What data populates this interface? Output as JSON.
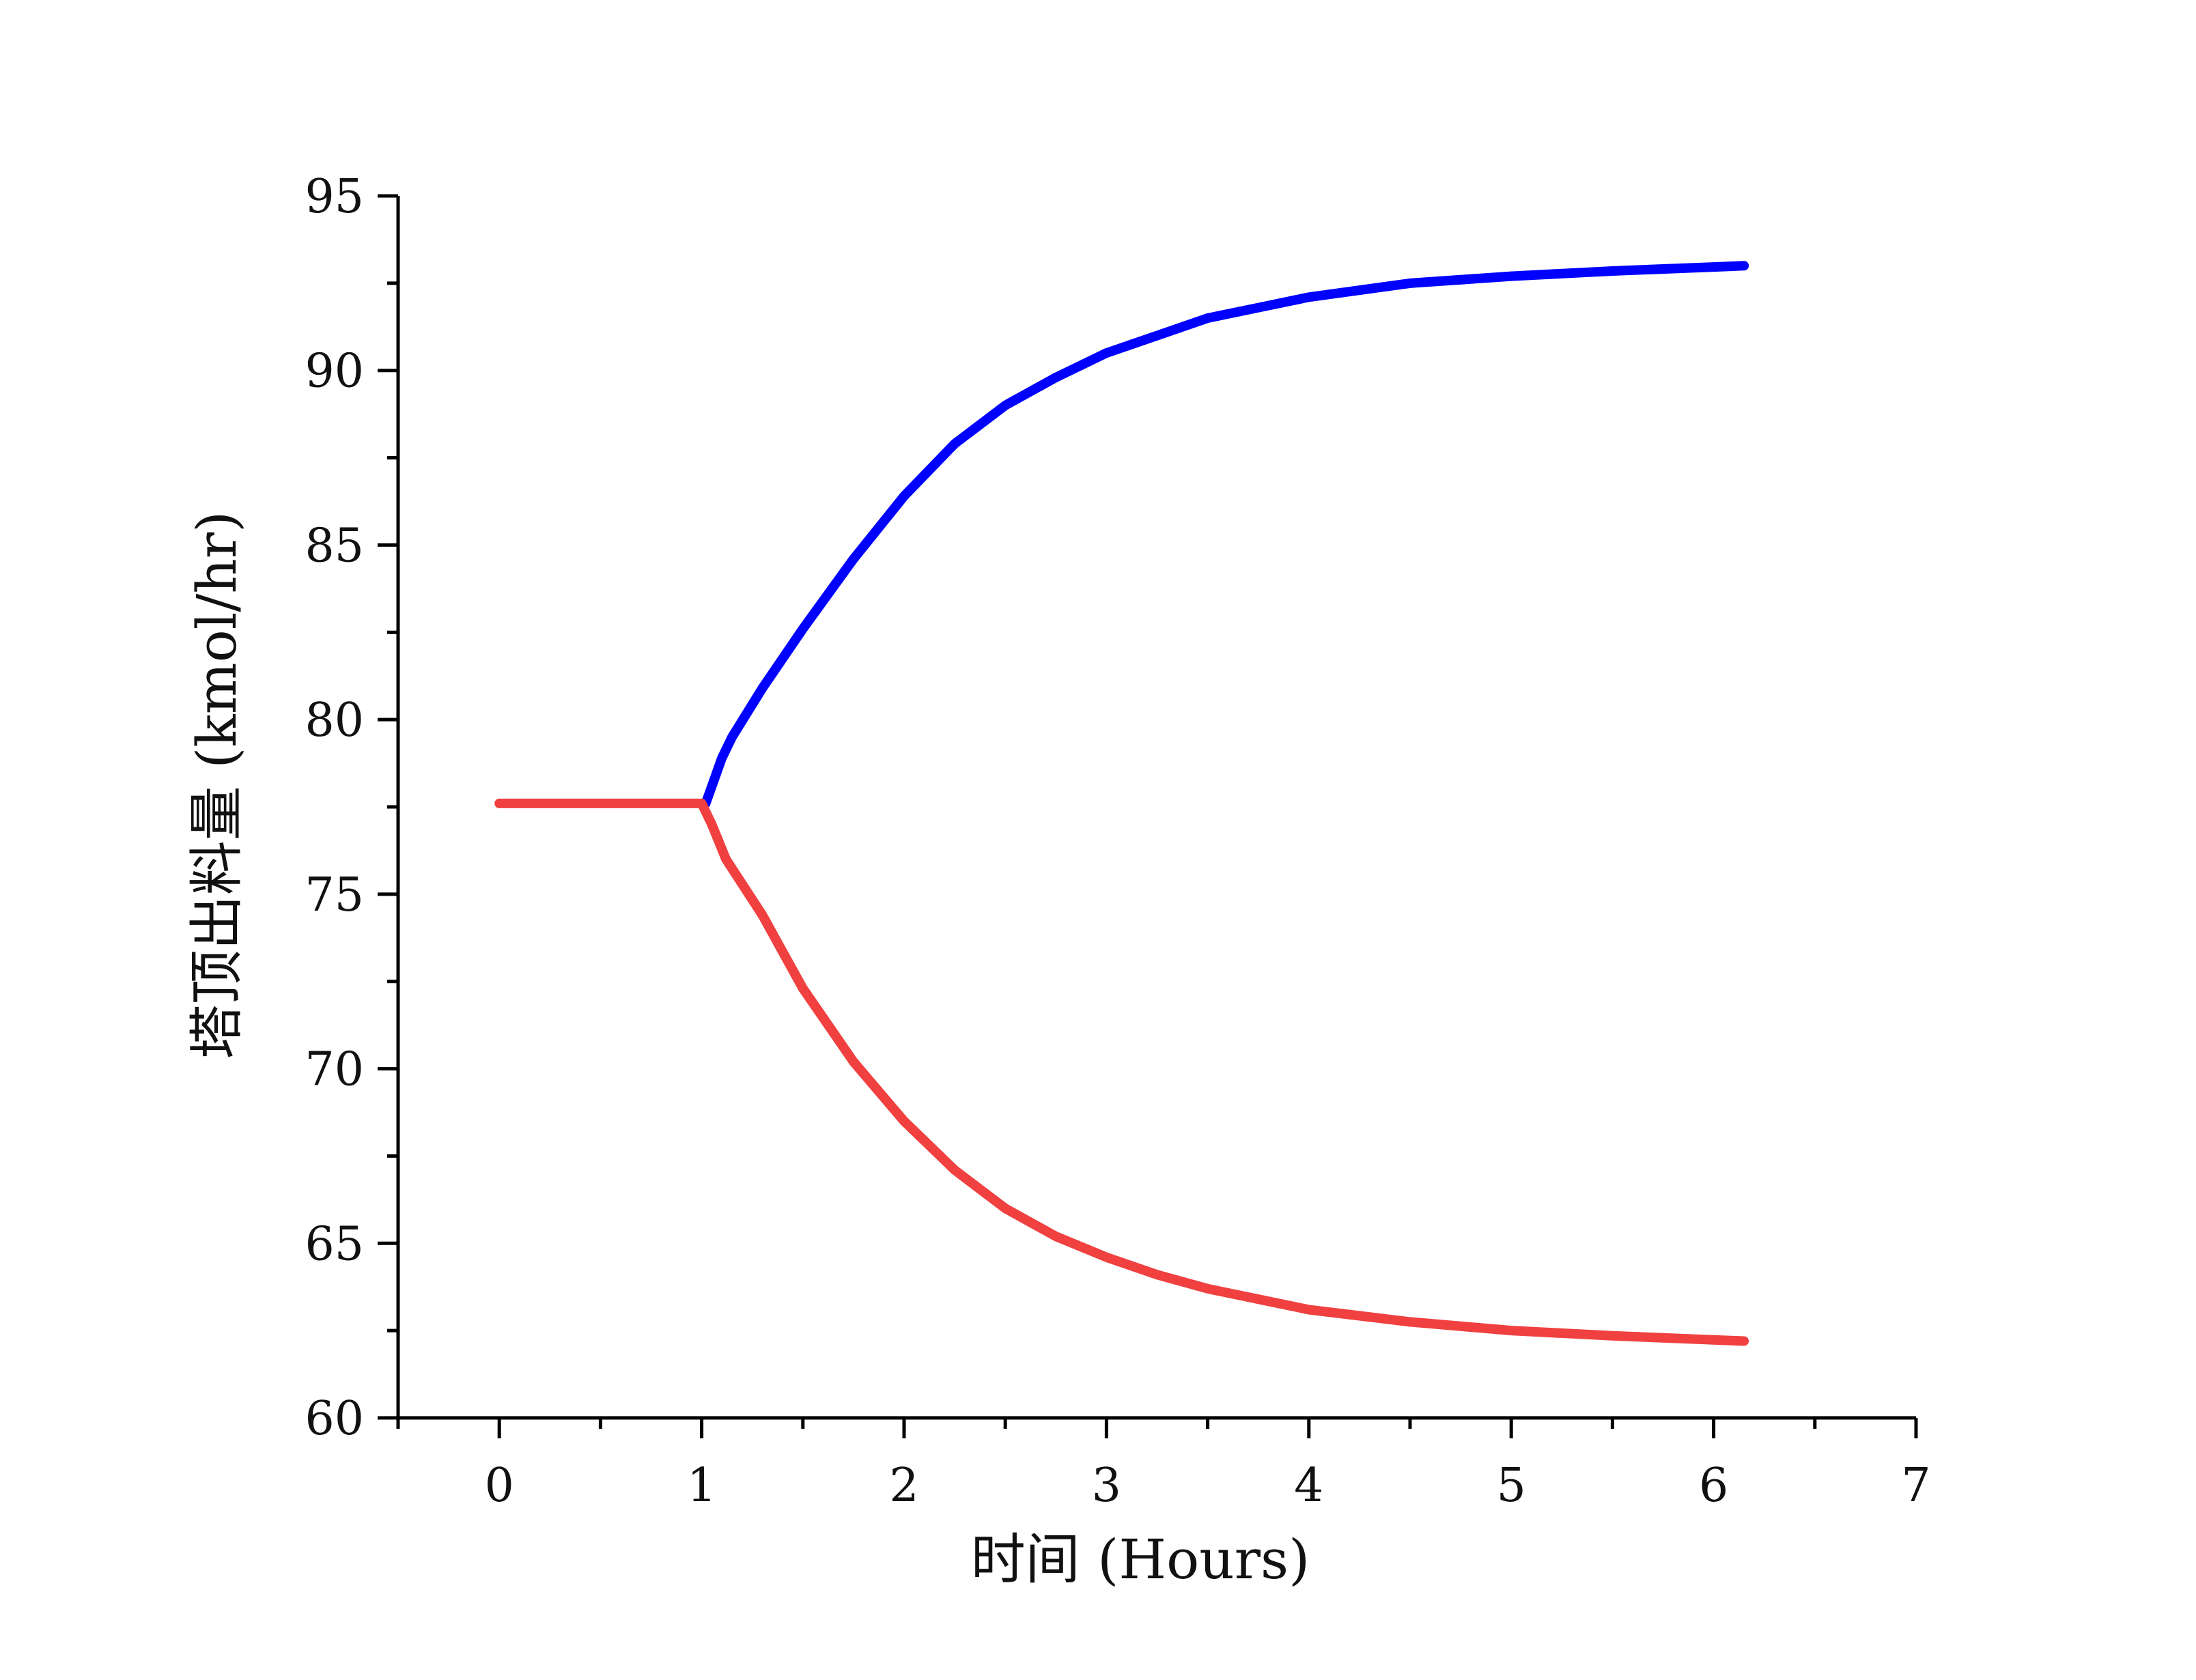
{
  "chart_data": {
    "type": "line",
    "title": "",
    "xlabel": "时间 (Hours)",
    "ylabel": "塔顶出料量 (kmol/hr)",
    "xlim": [
      -0.5,
      7
    ],
    "ylim": [
      60,
      95
    ],
    "xticks": [
      0,
      1,
      2,
      3,
      4,
      5,
      6,
      7
    ],
    "yticks": [
      60,
      65,
      70,
      75,
      80,
      85,
      90,
      95
    ],
    "grid": false,
    "legend": "none",
    "series": [
      {
        "color": "#0000ff",
        "points": [
          [
            1.02,
            77.6
          ],
          [
            1.1,
            78.9
          ],
          [
            1.15,
            79.5
          ],
          [
            1.3,
            80.9
          ],
          [
            1.5,
            82.6
          ],
          [
            1.75,
            84.6
          ],
          [
            2.0,
            86.4
          ],
          [
            2.25,
            87.9
          ],
          [
            2.5,
            89.0
          ],
          [
            2.75,
            89.8
          ],
          [
            3.0,
            90.5
          ],
          [
            3.25,
            91.0
          ],
          [
            3.5,
            91.5
          ],
          [
            3.75,
            91.8
          ],
          [
            4.0,
            92.1
          ],
          [
            4.5,
            92.5
          ],
          [
            5.0,
            92.7
          ],
          [
            5.5,
            92.85
          ],
          [
            6.15,
            93.0
          ]
        ]
      },
      {
        "color": "#f04040",
        "points": [
          [
            0,
            77.6
          ],
          [
            0.5,
            77.6
          ],
          [
            1.0,
            77.6
          ],
          [
            1.05,
            77.0
          ],
          [
            1.12,
            76.0
          ],
          [
            1.3,
            74.4
          ],
          [
            1.5,
            72.3
          ],
          [
            1.75,
            70.2
          ],
          [
            2.0,
            68.5
          ],
          [
            2.25,
            67.1
          ],
          [
            2.5,
            66.0
          ],
          [
            2.75,
            65.2
          ],
          [
            3.0,
            64.6
          ],
          [
            3.25,
            64.1
          ],
          [
            3.5,
            63.7
          ],
          [
            3.75,
            63.4
          ],
          [
            4.0,
            63.1
          ],
          [
            4.5,
            62.75
          ],
          [
            5.0,
            62.5
          ],
          [
            5.5,
            62.35
          ],
          [
            6.15,
            62.2
          ]
        ]
      }
    ]
  }
}
